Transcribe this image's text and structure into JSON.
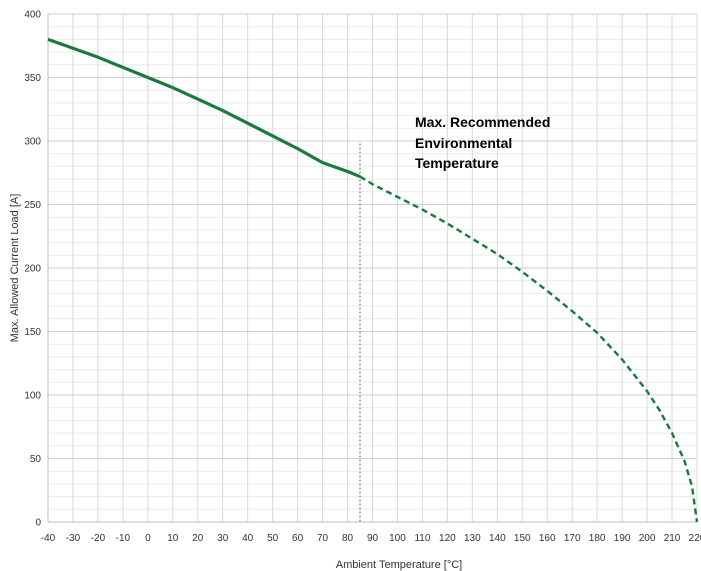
{
  "chart_data": {
    "type": "line",
    "xlabel": "Ambient Temperature [°C]",
    "ylabel": "Max. Allowed Current Load [A]",
    "xlim": [
      -40,
      220
    ],
    "ylim": [
      0,
      400
    ],
    "x_ticks": [
      -40,
      -30,
      -20,
      -10,
      0,
      10,
      20,
      30,
      40,
      50,
      60,
      70,
      80,
      90,
      100,
      110,
      120,
      130,
      140,
      150,
      160,
      170,
      180,
      190,
      200,
      210,
      220
    ],
    "y_ticks": [
      0,
      50,
      100,
      150,
      200,
      250,
      300,
      350,
      400
    ],
    "grid": true,
    "series": [
      {
        "style": "solid",
        "color": "#1a7a3c",
        "x": [
          -40,
          -30,
          -20,
          -10,
          0,
          10,
          20,
          30,
          40,
          50,
          60,
          70,
          80,
          85
        ],
        "y": [
          380,
          373,
          366,
          358,
          350,
          342,
          333,
          324,
          314,
          304,
          294,
          283,
          276,
          272
        ]
      },
      {
        "style": "dashed",
        "color": "#1a7a3c",
        "x": [
          85,
          90,
          100,
          110,
          120,
          130,
          140,
          150,
          160,
          170,
          180,
          190,
          200,
          205,
          210,
          215,
          218,
          220
        ],
        "y": [
          272,
          266,
          256,
          246,
          235,
          223,
          211,
          197,
          182,
          166,
          149,
          128,
          103,
          88,
          70,
          48,
          28,
          0
        ]
      }
    ],
    "reference_line": {
      "x": 85,
      "style": "dotted",
      "color": "#999999"
    },
    "annotation": {
      "lines": [
        "Max. Recommended",
        "Environmental",
        "Temperature"
      ]
    }
  }
}
